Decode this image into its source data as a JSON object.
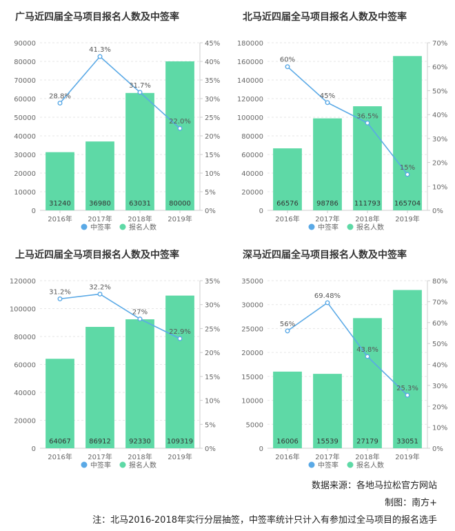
{
  "colors": {
    "bar": "#5ed9a6",
    "line": "#5aa9e6",
    "axis_text": "#666666",
    "grid": "#e6e6e6"
  },
  "legend": {
    "line_label": "中签率",
    "bar_label": "报名人数"
  },
  "chart_data": [
    {
      "type": "bar",
      "title": "广马近四届全马项目报名人数及中签率",
      "categories": [
        "2016年",
        "2017年",
        "2018年",
        "2019年"
      ],
      "left_axis": {
        "max": 90000,
        "step": 10000
      },
      "right_axis": {
        "max": 45,
        "step": 5,
        "unit": "%"
      },
      "series": [
        {
          "name": "报名人数",
          "type": "bar",
          "values": [
            31240,
            36980,
            63031,
            80000
          ],
          "labels": [
            "31240",
            "36980",
            "63031",
            "80000"
          ]
        },
        {
          "name": "中签率",
          "type": "line",
          "values": [
            28.8,
            41.3,
            31.7,
            22.0
          ],
          "labels": [
            "28.8%",
            "41.3%",
            "31.7%",
            "22.0%"
          ]
        }
      ]
    },
    {
      "type": "bar",
      "title": "北马近四届全马项目报名人数及中签率",
      "categories": [
        "2016年",
        "2017年",
        "2018年",
        "2019年"
      ],
      "left_axis": {
        "max": 180000,
        "step": 20000
      },
      "right_axis": {
        "max": 70,
        "step": 10,
        "unit": "%"
      },
      "series": [
        {
          "name": "报名人数",
          "type": "bar",
          "values": [
            66576,
            98786,
            111793,
            165704
          ],
          "labels": [
            "66576",
            "98786",
            "111793",
            "165704"
          ]
        },
        {
          "name": "中签率",
          "type": "line",
          "values": [
            60,
            45,
            36.5,
            15
          ],
          "labels": [
            "60%",
            "45%",
            "36.5%",
            "15%"
          ]
        }
      ]
    },
    {
      "type": "bar",
      "title": "上马近四届全马项目报名人数及中签率",
      "categories": [
        "2016年",
        "2017年",
        "2018年",
        "2019年"
      ],
      "left_axis": {
        "max": 120000,
        "step": 20000
      },
      "right_axis": {
        "max": 35,
        "step": 5,
        "unit": "%"
      },
      "series": [
        {
          "name": "报名人数",
          "type": "bar",
          "values": [
            64067,
            86912,
            92330,
            109319
          ],
          "labels": [
            "64067",
            "86912",
            "92330",
            "109319"
          ]
        },
        {
          "name": "中签率",
          "type": "line",
          "values": [
            31.2,
            32.2,
            27,
            22.9
          ],
          "labels": [
            "31.2%",
            "32.2%",
            "27%",
            "22.9%"
          ]
        }
      ]
    },
    {
      "type": "bar",
      "title": "深马近四届全马项目报名人数及中签率",
      "categories": [
        "2016年",
        "2017年",
        "2018年",
        "2019年"
      ],
      "left_axis": {
        "max": 35000,
        "step": 5000
      },
      "right_axis": {
        "max": 80,
        "step": 10,
        "unit": "%"
      },
      "series": [
        {
          "name": "报名人数",
          "type": "bar",
          "values": [
            16006,
            15539,
            27179,
            33051
          ],
          "labels": [
            "16006",
            "15539",
            "27179",
            "33051"
          ]
        },
        {
          "name": "中签率",
          "type": "line",
          "values": [
            56,
            69.48,
            43.8,
            25.3
          ],
          "labels": [
            "56%",
            "69.48%",
            "43.8%",
            "25.3%"
          ]
        }
      ]
    }
  ],
  "footer": {
    "source": "数据来源：各地马拉松官方网站",
    "credit": "制图：南方+",
    "note": "注：北马2016-2018年实行分层抽签，中签率统计只计入有参加过全马项目的报名选手"
  }
}
